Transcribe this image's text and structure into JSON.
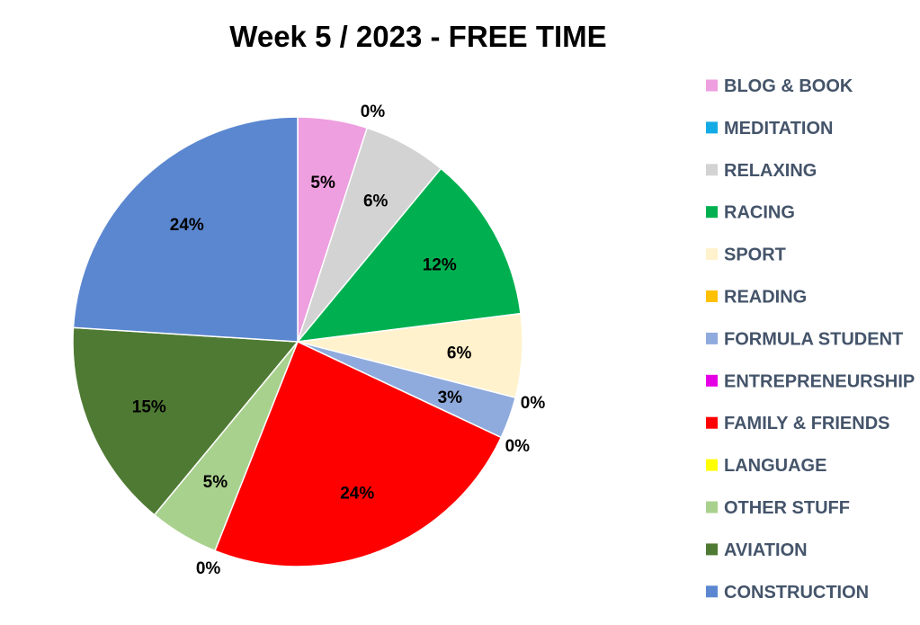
{
  "chart_data": {
    "type": "pie",
    "title": "Week 5 / 2023 - FREE TIME",
    "categories": [
      "BLOG & BOOK",
      "MEDITATION",
      "RELAXING",
      "RACING",
      "SPORT",
      "READING",
      "FORMULA STUDENT",
      "ENTREPRENEURSHIP",
      "FAMILY & FRIENDS",
      "LANGUAGE",
      "OTHER STUFF",
      "AVIATION",
      "CONSTRUCTION"
    ],
    "values": [
      5,
      0,
      6,
      12,
      6,
      0,
      3,
      0,
      24,
      0,
      5,
      15,
      24
    ],
    "data_labels": [
      "5%",
      "0%",
      "6%",
      "12%",
      "6%",
      "0%",
      "3%",
      "0%",
      "24%",
      "0%",
      "5%",
      "15%",
      "24%"
    ],
    "colors": [
      "#ee9fdf",
      "#13abe6",
      "#d3d3d3",
      "#00b050",
      "#fff2cc",
      "#ffc000",
      "#8faadc",
      "#e600e6",
      "#ff0000",
      "#ffff00",
      "#a9d18e",
      "#4f7a33",
      "#5b87d0"
    ],
    "start_angle_deg": 0,
    "direction": "clockwise",
    "legend_position": "right"
  }
}
